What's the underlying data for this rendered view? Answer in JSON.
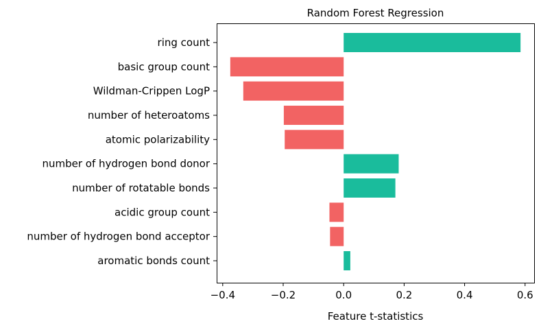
{
  "chart_data": {
    "type": "bar",
    "orientation": "horizontal",
    "title": "Random Forest Regression",
    "xlabel": "Feature t-statistics",
    "ylabel": "",
    "xlim": [
      -0.42,
      0.63
    ],
    "xticks": [
      -0.4,
      -0.2,
      0.0,
      0.2,
      0.4,
      0.6
    ],
    "xtick_labels": [
      "−0.4",
      "−0.2",
      "0.0",
      "0.2",
      "0.4",
      "0.6"
    ],
    "grid": false,
    "categories": [
      "ring count",
      "basic group count",
      "Wildman-Crippen LogP",
      "number of heteroatoms",
      "atomic polarizability",
      "number of hydrogen bond donor",
      "number of rotatable bonds",
      "acidic group count",
      "number of hydrogen bond acceptor",
      "aromatic bonds count"
    ],
    "values": [
      0.585,
      -0.375,
      -0.332,
      -0.198,
      -0.195,
      0.182,
      0.171,
      -0.047,
      -0.045,
      0.022
    ],
    "highlighted_labels": [
      "basic group count",
      "Wildman-Crippen LogP",
      "number of hydrogen bond donor"
    ],
    "colors": {
      "positive": "#1abc9c",
      "negative": "#f26363",
      "label_default": "#000000",
      "label_highlight": "#800080"
    }
  }
}
